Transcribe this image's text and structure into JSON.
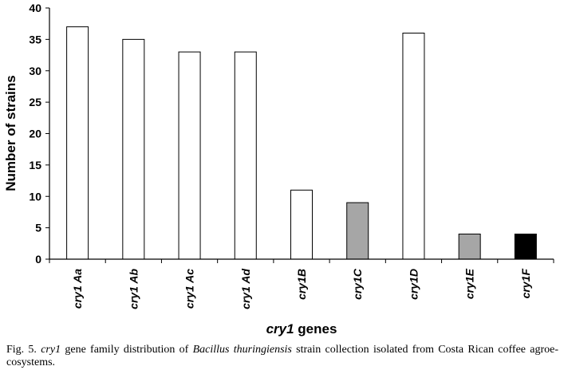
{
  "chart_data": {
    "type": "bar",
    "categories": [
      "cry1 Aa",
      "cry1 Ab",
      "cry1 Ac",
      "cry1 Ad",
      "cry1B",
      "cry1C",
      "cry1D",
      "cry1E",
      "cry1F"
    ],
    "values": [
      37,
      35,
      33,
      33,
      11,
      9,
      36,
      4,
      4
    ],
    "bar_colors": [
      "#ffffff",
      "#ffffff",
      "#ffffff",
      "#ffffff",
      "#ffffff",
      "#a6a6a6",
      "#ffffff",
      "#a6a6a6",
      "#000000"
    ],
    "xlabel_italic": "cry1",
    "xlabel_rest": " genes",
    "ylabel": "Number of strains",
    "ylim": [
      0,
      40
    ],
    "yticks": [
      0,
      5,
      10,
      15,
      20,
      25,
      30,
      35,
      40
    ],
    "grid": false
  },
  "caption": {
    "prefix": "Fig. 5. ",
    "gene": "cry1",
    "mid": " gene family distribution of ",
    "species": "Bacillus thuringiensis",
    "suffix": " strain collection isolated from Costa Rican coffee agroe-cosystems."
  }
}
